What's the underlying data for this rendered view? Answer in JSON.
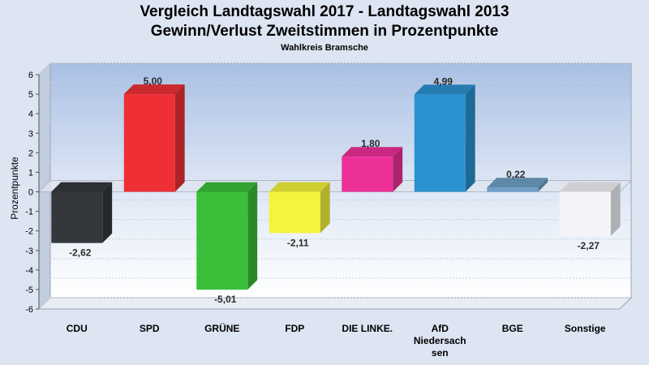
{
  "chart_data": {
    "type": "bar",
    "title": "Vergleich Landtagswahl 2017 - Landtagswahl 2013",
    "subtitle": "Gewinn/Verlust Zweitstimmen in Prozentpunkte",
    "subsubtitle": "Wahlkreis Bramsche",
    "ylabel": "Prozentpunkte",
    "xlabel": "",
    "ylim": [
      -6,
      6
    ],
    "yticks": [
      "6",
      "5",
      "4",
      "3",
      "2",
      "1",
      "0",
      "-1",
      "-2",
      "-3",
      "-4",
      "-5",
      "-6"
    ],
    "grid": true,
    "categories": [
      "CDU",
      "SPD",
      "GRÜNE",
      "FDP",
      "DIE LINKE.",
      "AfD Niedersachsen",
      "BGE",
      "Sonstige"
    ],
    "category_label_lines": [
      [
        "CDU"
      ],
      [
        "SPD"
      ],
      [
        "GRÜNE"
      ],
      [
        "FDP"
      ],
      [
        "DIE LINKE."
      ],
      [
        "AfD",
        "Niedersach",
        "sen"
      ],
      [
        "BGE"
      ],
      [
        "Sonstige"
      ]
    ],
    "values": [
      -2.62,
      5.0,
      -5.01,
      -2.11,
      1.8,
      4.99,
      0.22,
      -2.27
    ],
    "value_labels": [
      "-2,62",
      "5,00",
      "-5,01",
      "-2,11",
      "1,80",
      "4,99",
      "0,22",
      "-2,27"
    ],
    "colors": [
      "#34373c",
      "#ee3036",
      "#3bbf3b",
      "#f4f43c",
      "#ee3099",
      "#2a92d0",
      "#6da0c6",
      "#f3f4f8"
    ]
  }
}
